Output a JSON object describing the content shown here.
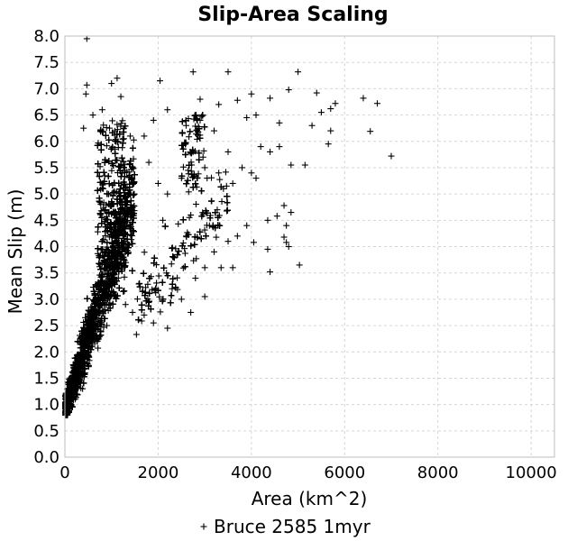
{
  "chart_data": {
    "type": "scatter",
    "title": "Slip-Area Scaling",
    "xlabel": "Area (km^2)",
    "ylabel": "Mean Slip (m)",
    "xlim": [
      0,
      10500
    ],
    "ylim": [
      0,
      8.0
    ],
    "xticks": [
      0,
      2000,
      4000,
      6000,
      8000,
      10000
    ],
    "xtick_labels": [
      "0",
      "2000",
      "4000",
      "6000",
      "8000",
      "10000"
    ],
    "yticks": [
      0,
      0.5,
      1.0,
      1.5,
      2.0,
      2.5,
      3.0,
      3.5,
      4.0,
      4.5,
      5.0,
      5.5,
      6.0,
      6.5,
      7.0,
      7.5,
      8.0
    ],
    "ytick_labels": [
      "0.0",
      "0.5",
      "1.0",
      "1.5",
      "2.0",
      "2.5",
      "3.0",
      "3.5",
      "4.0",
      "4.5",
      "5.0",
      "5.5",
      "6.0",
      "6.5",
      "7.0",
      "7.5",
      "8.0"
    ],
    "grid": true,
    "legend_position": "bottom",
    "marker": "plus",
    "marker_color": "#000000",
    "series": [
      {
        "name": "Bruce 2585 1myr",
        "points": [
          [
            470,
            7.95
          ],
          [
            1120,
            7.2
          ],
          [
            2040,
            7.15
          ],
          [
            2750,
            7.32
          ],
          [
            3500,
            7.32
          ],
          [
            5000,
            7.32
          ],
          [
            470,
            7.07
          ],
          [
            450,
            6.9
          ],
          [
            1200,
            6.85
          ],
          [
            4000,
            6.9
          ],
          [
            4800,
            6.98
          ],
          [
            5400,
            6.92
          ],
          [
            6400,
            6.82
          ],
          [
            6700,
            6.72
          ],
          [
            5800,
            6.72
          ],
          [
            5700,
            6.62
          ],
          [
            5500,
            6.55
          ],
          [
            4400,
            6.82
          ],
          [
            3900,
            6.45
          ],
          [
            4600,
            6.35
          ],
          [
            5300,
            6.3
          ],
          [
            5700,
            6.2
          ],
          [
            6550,
            6.19
          ],
          [
            4100,
            6.5
          ],
          [
            3300,
            6.7
          ],
          [
            3700,
            6.78
          ],
          [
            2900,
            6.8
          ],
          [
            2200,
            6.6
          ],
          [
            7000,
            5.72
          ],
          [
            5650,
            5.95
          ],
          [
            5150,
            5.55
          ],
          [
            4850,
            5.55
          ],
          [
            4600,
            5.9
          ],
          [
            4400,
            5.8
          ],
          [
            4200,
            5.9
          ],
          [
            3800,
            5.5
          ],
          [
            4000,
            5.4
          ],
          [
            3600,
            5.2
          ],
          [
            3400,
            5.1
          ],
          [
            3050,
            5.3
          ],
          [
            4100,
            5.3
          ],
          [
            4350,
            4.5
          ],
          [
            4550,
            4.58
          ],
          [
            4700,
            4.78
          ],
          [
            4850,
            4.65
          ],
          [
            4750,
            4.4
          ],
          [
            4700,
            4.18
          ],
          [
            4750,
            4.08
          ],
          [
            4800,
            4.0
          ],
          [
            4050,
            4.08
          ],
          [
            4400,
            3.52
          ],
          [
            5030,
            3.65
          ],
          [
            3600,
            3.6
          ],
          [
            3350,
            3.6
          ],
          [
            3000,
            3.05
          ],
          [
            2700,
            2.75
          ],
          [
            2200,
            2.45
          ],
          [
            1900,
            2.55
          ],
          [
            1700,
            2.7
          ],
          [
            1450,
            2.75
          ],
          [
            2500,
            3.0
          ],
          [
            2300,
            3.2
          ],
          [
            2800,
            3.4
          ],
          [
            3000,
            3.6
          ],
          [
            3200,
            3.9
          ],
          [
            3500,
            4.1
          ],
          [
            3700,
            4.2
          ],
          [
            2600,
            4.2
          ],
          [
            2100,
            4.5
          ],
          [
            2200,
            5.0
          ],
          [
            2500,
            5.3
          ],
          [
            3000,
            5.5
          ],
          [
            3300,
            5.4
          ],
          [
            3500,
            5.8
          ],
          [
            3200,
            6.2
          ],
          [
            2900,
            6.4
          ],
          [
            2600,
            6.3
          ],
          [
            1900,
            6.4
          ],
          [
            1700,
            6.1
          ],
          [
            1400,
            6.1
          ],
          [
            1800,
            5.6
          ],
          [
            2000,
            5.2
          ],
          [
            2700,
            4.6
          ],
          [
            3100,
            4.4
          ],
          [
            4350,
            3.95
          ],
          [
            3900,
            4.4
          ],
          [
            1000,
            7.1
          ],
          [
            800,
            6.6
          ],
          [
            600,
            6.5
          ],
          [
            400,
            6.25
          ],
          [
            430,
            1.6
          ],
          [
            380,
            1.3
          ],
          [
            220,
            1.1
          ],
          [
            150,
            0.95
          ],
          [
            250,
            1.8
          ],
          [
            60,
            1.0
          ],
          [
            500,
            1.9
          ],
          [
            650,
            2.2
          ],
          [
            900,
            2.5
          ],
          [
            1300,
            2.9
          ],
          [
            1600,
            3.3
          ],
          [
            1150,
            3.9
          ]
        ]
      }
    ]
  }
}
